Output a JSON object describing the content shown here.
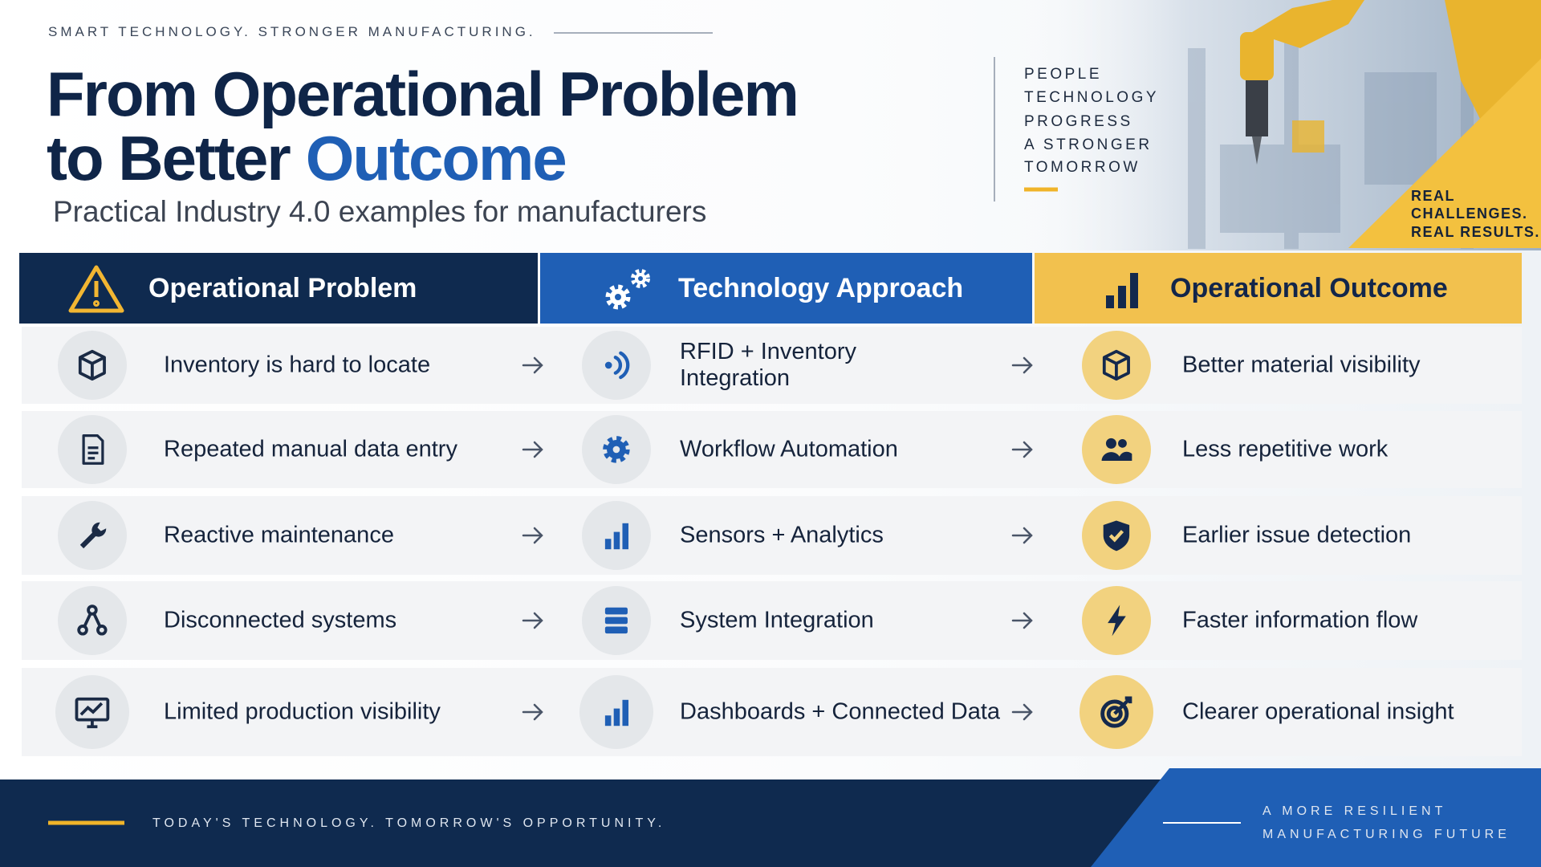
{
  "header": {
    "tagline": "SMART TECHNOLOGY. STRONGER MANUFACTURING.",
    "title_line1": "From Operational Problem",
    "title_line2_start": "to Better",
    "title_line2_highlight": "Outcome",
    "subtitle": "Practical Industry 4.0 examples for manufacturers"
  },
  "side_words": [
    "PEOPLE",
    "TECHNOLOGY",
    "PROGRESS",
    "A STRONGER",
    "TOMORROW"
  ],
  "badge_lines": [
    "REAL",
    "CHALLENGES.",
    "REAL RESULTS."
  ],
  "columns": [
    "Operational Problem",
    "Technology Approach",
    "Operational Outcome"
  ],
  "rows": [
    [
      "Inventory is hard to locate",
      "RFID + Inventory Integration",
      "Better material visibility"
    ],
    [
      "Repeated manual data entry",
      "Workflow Automation",
      "Less repetitive work"
    ],
    [
      "Reactive maintenance",
      "Sensors + Analytics",
      "Earlier issue detection"
    ],
    [
      "Disconnected systems",
      "System Integration",
      "Faster information flow"
    ],
    [
      "Limited production visibility",
      "Dashboards + Connected Data",
      "Clearer operational insight"
    ]
  ],
  "footer": {
    "left": "TODAY'S TECHNOLOGY. TOMORROW'S OPPORTUNITY.",
    "right_lines": [
      "A MORE RESILIENT",
      "MANUFACTURING FUTURE"
    ]
  }
}
